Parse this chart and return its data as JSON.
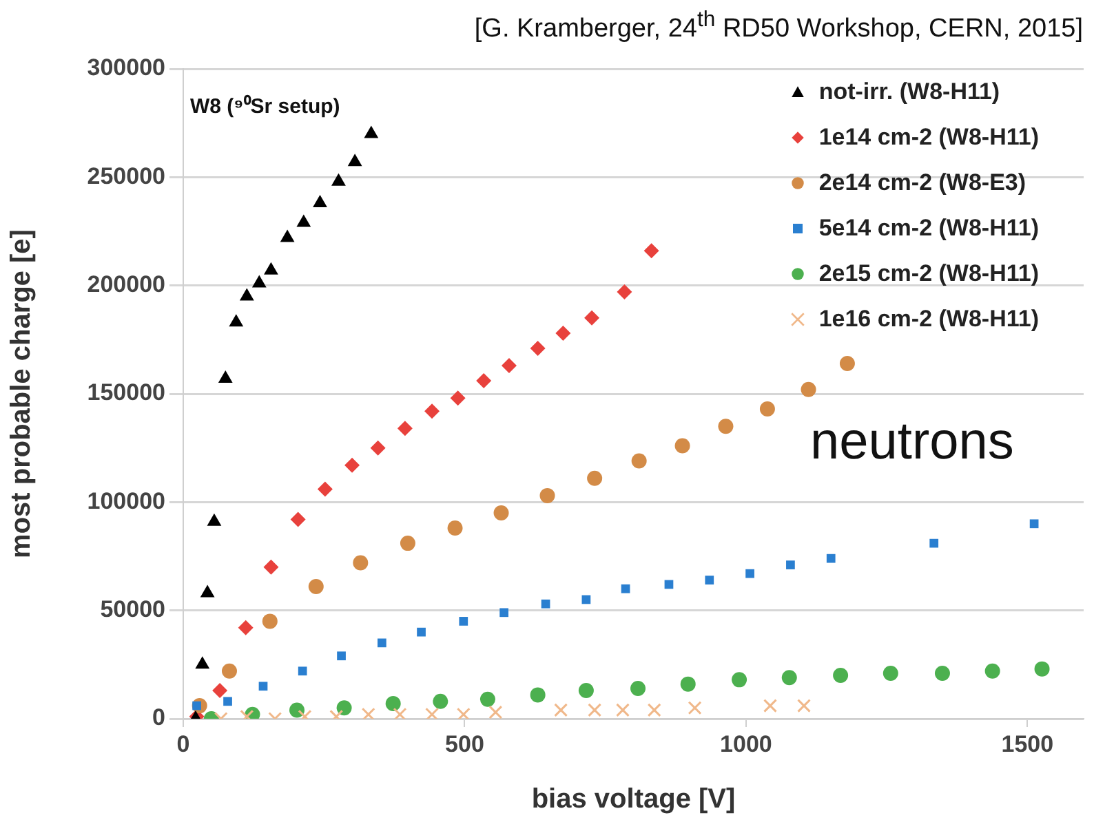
{
  "chart_data": {
    "type": "scatter",
    "xlabel": "bias voltage [V]",
    "ylabel": "most probable charge [e]",
    "annotations": [
      "[G. Kramberger, 24$^{th}$ RD50 Workshop, CERN, 2015]",
      "W8 (⁹⁰Sr setup)",
      "neutrons"
    ],
    "xlim": [
      0,
      1600
    ],
    "xticks": [
      0,
      500,
      1000,
      1500
    ],
    "ylim": [
      0,
      300000
    ],
    "yticks": [
      0,
      50000,
      100000,
      150000,
      200000,
      250000,
      300000
    ],
    "grid": "y",
    "legend": "top right",
    "series": [
      {
        "name": "not-irr. (W8-H11)",
        "color": "#000000",
        "marker": "triangle",
        "x": [
          22,
          34,
          43,
          55,
          75,
          94,
          113,
          135,
          156,
          185,
          214,
          243,
          276,
          305,
          334
        ],
        "values": [
          0,
          25000,
          58000,
          91000,
          157000,
          183000,
          195000,
          201000,
          207000,
          222000,
          229000,
          238000,
          248000,
          257000,
          270000
        ]
      },
      {
        "name": "1e14 cm-2 (W8-H11)",
        "color": "#e8413c",
        "marker": "diamond",
        "x": [
          24,
          65,
          111,
          156,
          204,
          252,
          300,
          346,
          394,
          442,
          488,
          534,
          579,
          630,
          675,
          726,
          784,
          832
        ],
        "values": [
          1000,
          13000,
          42000,
          70000,
          92000,
          106000,
          117000,
          125000,
          134000,
          142000,
          148000,
          156000,
          163000,
          171000,
          178000,
          185000,
          197000,
          216000
        ]
      },
      {
        "name": "2e14 cm-2 (W8-E3)",
        "color": "#d38b47",
        "marker": "circle",
        "x": [
          29,
          82,
          154,
          236,
          315,
          399,
          483,
          565,
          647,
          731,
          810,
          887,
          964,
          1038,
          1111,
          1180
        ],
        "values": [
          6000,
          22000,
          45000,
          61000,
          72000,
          81000,
          88000,
          95000,
          103000,
          111000,
          119000,
          126000,
          135000,
          143000,
          152000,
          164000
        ]
      },
      {
        "name": "5e14 cm-2 (W8-H11)",
        "color": "#2a7fd0",
        "marker": "square",
        "x": [
          24,
          79,
          142,
          212,
          281,
          353,
          423,
          498,
          570,
          644,
          716,
          786,
          863,
          935,
          1007,
          1079,
          1151,
          1334,
          1512
        ],
        "values": [
          6000,
          8000,
          15000,
          22000,
          29000,
          35000,
          40000,
          45000,
          49000,
          53000,
          55000,
          60000,
          62000,
          64000,
          67000,
          71000,
          74000,
          81000,
          90000
        ]
      },
      {
        "name": "2e15 cm-2 (W8-H11)",
        "color": "#4cb04f",
        "marker": "circle",
        "x": [
          50,
          123,
          202,
          286,
          373,
          457,
          541,
          630,
          716,
          808,
          897,
          988,
          1077,
          1168,
          1257,
          1349,
          1438,
          1526
        ],
        "values": [
          0,
          2000,
          4000,
          5000,
          7000,
          8000,
          9000,
          11000,
          13000,
          14000,
          16000,
          18000,
          19000,
          20000,
          21000,
          21000,
          22000,
          23000
        ]
      },
      {
        "name": "1e16 cm-2 (W8-H11)",
        "color": "#f0b88a",
        "marker": "cross",
        "x": [
          67,
          113,
          163,
          216,
          272,
          329,
          385,
          442,
          498,
          555,
          671,
          731,
          781,
          837,
          909,
          1043,
          1103
        ],
        "values": [
          0,
          1000,
          0,
          1000,
          1000,
          2000,
          2000,
          2000,
          2000,
          3000,
          4000,
          4000,
          4000,
          4000,
          5000,
          6000,
          6000
        ]
      }
    ]
  }
}
